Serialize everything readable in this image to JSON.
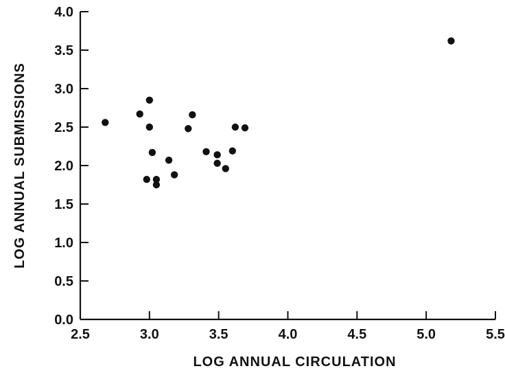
{
  "chart_data": {
    "type": "scatter",
    "title": "",
    "xlabel": "LOG ANNUAL CIRCULATION",
    "ylabel": "LOG ANNUAL SUBMISSIONS",
    "xlim": [
      2.5,
      5.5
    ],
    "ylim": [
      0.0,
      4.0
    ],
    "x_ticks": [
      "2.5",
      "3.0",
      "3.5",
      "4.0",
      "4.5",
      "5.0",
      "5.5"
    ],
    "y_ticks": [
      "0.0",
      "0.5",
      "1.0",
      "1.5",
      "2.0",
      "2.5",
      "3.0",
      "3.5",
      "4.0"
    ],
    "grid": false,
    "legend": "none",
    "point_color": "#111111",
    "series": [
      {
        "points": [
          {
            "x": 2.68,
            "y": 2.56
          },
          {
            "x": 2.93,
            "y": 2.67
          },
          {
            "x": 3.0,
            "y": 2.85
          },
          {
            "x": 3.0,
            "y": 2.5
          },
          {
            "x": 3.02,
            "y": 2.17
          },
          {
            "x": 2.98,
            "y": 1.82
          },
          {
            "x": 3.05,
            "y": 1.82
          },
          {
            "x": 3.05,
            "y": 1.75
          },
          {
            "x": 3.14,
            "y": 2.07
          },
          {
            "x": 3.18,
            "y": 1.88
          },
          {
            "x": 3.28,
            "y": 2.48
          },
          {
            "x": 3.31,
            "y": 2.66
          },
          {
            "x": 3.41,
            "y": 2.18
          },
          {
            "x": 3.49,
            "y": 2.14
          },
          {
            "x": 3.49,
            "y": 2.03
          },
          {
            "x": 3.55,
            "y": 1.96
          },
          {
            "x": 3.6,
            "y": 2.19
          },
          {
            "x": 3.62,
            "y": 2.5
          },
          {
            "x": 3.69,
            "y": 2.49
          },
          {
            "x": 5.18,
            "y": 3.62
          }
        ]
      }
    ]
  }
}
